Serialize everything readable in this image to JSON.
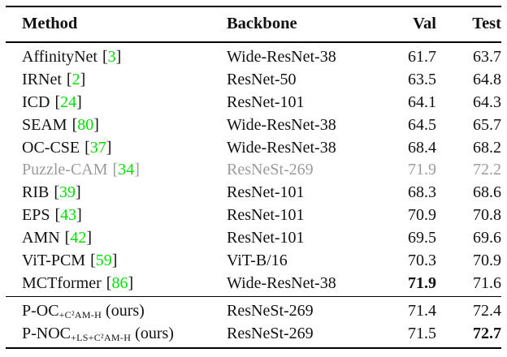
{
  "colors": {
    "citation_green": "#00e000",
    "muted_gray": "#9b9b9b",
    "rule_black": "#000000",
    "text": "#111111"
  },
  "citation": {
    "open": "[",
    "close": "]"
  },
  "table": {
    "headers": {
      "method": "Method",
      "backbone": "Backbone",
      "val": "Val",
      "test": "Test"
    },
    "rows": [
      {
        "name": "AffinityNet",
        "sub": "",
        "suffix": "",
        "cite": "3",
        "backbone": "Wide-ResNet-38",
        "val": "61.7",
        "test": "63.7",
        "muted": false,
        "val_bold": false,
        "test_bold": false,
        "group": "main"
      },
      {
        "name": "IRNet",
        "sub": "",
        "suffix": "",
        "cite": "2",
        "backbone": "ResNet-50",
        "val": "63.5",
        "test": "64.8",
        "muted": false,
        "val_bold": false,
        "test_bold": false,
        "group": "main"
      },
      {
        "name": "ICD",
        "sub": "",
        "suffix": "",
        "cite": "24",
        "backbone": "ResNet-101",
        "val": "64.1",
        "test": "64.3",
        "muted": false,
        "val_bold": false,
        "test_bold": false,
        "group": "main"
      },
      {
        "name": "SEAM",
        "sub": "",
        "suffix": "",
        "cite": "80",
        "backbone": "Wide-ResNet-38",
        "val": "64.5",
        "test": "65.7",
        "muted": false,
        "val_bold": false,
        "test_bold": false,
        "group": "main"
      },
      {
        "name": "OC-CSE",
        "sub": "",
        "suffix": "",
        "cite": "37",
        "backbone": "Wide-ResNet-38",
        "val": "68.4",
        "test": "68.2",
        "muted": false,
        "val_bold": false,
        "test_bold": false,
        "group": "main"
      },
      {
        "name": "Puzzle-CAM",
        "sub": "",
        "suffix": "",
        "cite": "34",
        "backbone": "ResNeSt-269",
        "val": "71.9",
        "test": "72.2",
        "muted": true,
        "val_bold": false,
        "test_bold": false,
        "group": "main"
      },
      {
        "name": "RIB",
        "sub": "",
        "suffix": "",
        "cite": "39",
        "backbone": "ResNet-101",
        "val": "68.3",
        "test": "68.6",
        "muted": false,
        "val_bold": false,
        "test_bold": false,
        "group": "main"
      },
      {
        "name": "EPS",
        "sub": "",
        "suffix": "",
        "cite": "43",
        "backbone": "ResNet-101",
        "val": "70.9",
        "test": "70.8",
        "muted": false,
        "val_bold": false,
        "test_bold": false,
        "group": "main"
      },
      {
        "name": "AMN",
        "sub": "",
        "suffix": "",
        "cite": "42",
        "backbone": "ResNet-101",
        "val": "69.5",
        "test": "69.6",
        "muted": false,
        "val_bold": false,
        "test_bold": false,
        "group": "main"
      },
      {
        "name": "ViT-PCM",
        "sub": "",
        "suffix": "",
        "cite": "59",
        "backbone": "ViT-B/16",
        "val": "70.3",
        "test": "70.9",
        "muted": false,
        "val_bold": false,
        "test_bold": false,
        "group": "main"
      },
      {
        "name": "MCTformer",
        "sub": "",
        "suffix": "",
        "cite": "86",
        "backbone": "Wide-ResNet-38",
        "val": "71.9",
        "test": "71.6",
        "muted": false,
        "val_bold": true,
        "test_bold": false,
        "group": "main"
      },
      {
        "name": "P-OC",
        "sub": "+C²AM-H",
        "suffix": "(ours)",
        "cite": "",
        "backbone": "ResNeSt-269",
        "val": "71.4",
        "test": "72.4",
        "muted": false,
        "val_bold": false,
        "test_bold": false,
        "group": "ours"
      },
      {
        "name": "P-NOC",
        "sub": "+LS+C²AM-H",
        "suffix": "(ours)",
        "cite": "",
        "backbone": "ResNeSt-269",
        "val": "71.5",
        "test": "72.7",
        "muted": false,
        "val_bold": false,
        "test_bold": true,
        "group": "ours"
      }
    ]
  }
}
